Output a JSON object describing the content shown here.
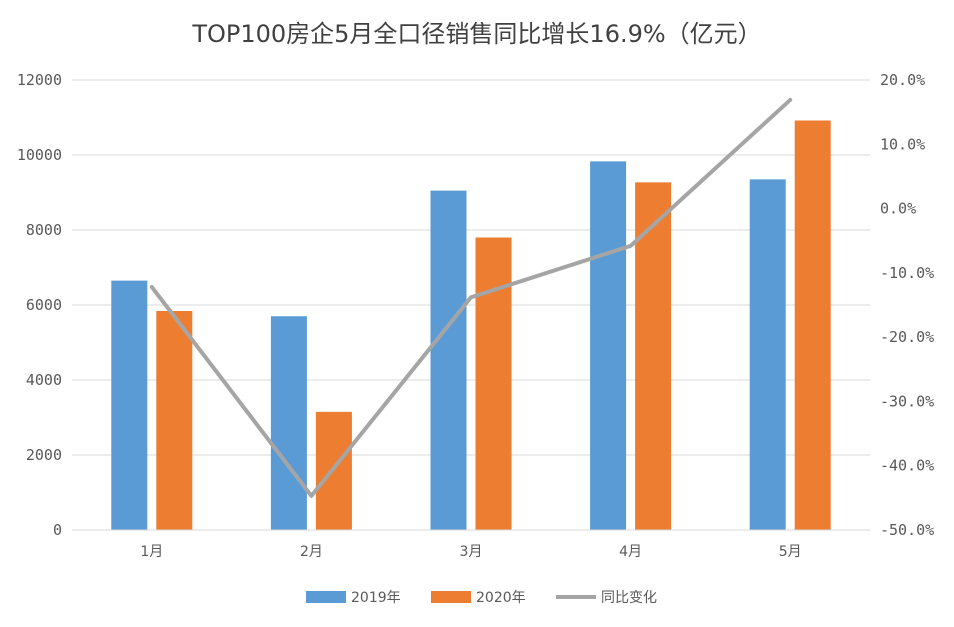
{
  "chart_data": {
    "type": "bar",
    "title": "TOP100房企5月全口径销售同比增长16.9%（亿元）",
    "categories": [
      "1月",
      "2月",
      "3月",
      "4月",
      "5月"
    ],
    "series": [
      {
        "name": "2019年",
        "type": "bar",
        "axis": "left",
        "color": "#5B9BD5",
        "values": [
          6650,
          5700,
          9050,
          9830,
          9350
        ]
      },
      {
        "name": "2020年",
        "type": "bar",
        "axis": "left",
        "color": "#ED7D31",
        "values": [
          5840,
          3150,
          7800,
          9270,
          10920
        ]
      },
      {
        "name": "同比变化",
        "type": "line",
        "axis": "right",
        "color": "#A5A5A5",
        "values": [
          -12.2,
          -44.7,
          -13.8,
          -5.8,
          16.9
        ]
      }
    ],
    "y_left": {
      "min": 0,
      "max": 12000,
      "ticks": [
        0,
        2000,
        4000,
        6000,
        8000,
        10000,
        12000
      ],
      "tick_labels": [
        "0",
        "2000",
        "4000",
        "6000",
        "8000",
        "10000",
        "12000"
      ]
    },
    "y_right": {
      "min": -50,
      "max": 20,
      "ticks": [
        20,
        10,
        0,
        -10,
        -20,
        -30,
        -40,
        -50
      ],
      "tick_labels": [
        "20.0%",
        "10.0%",
        "0.0%",
        "-10.0%",
        "-20.0%",
        "-30.0%",
        "-40.0%",
        "-50.0%"
      ]
    },
    "grid": true,
    "legend": "bottom"
  }
}
